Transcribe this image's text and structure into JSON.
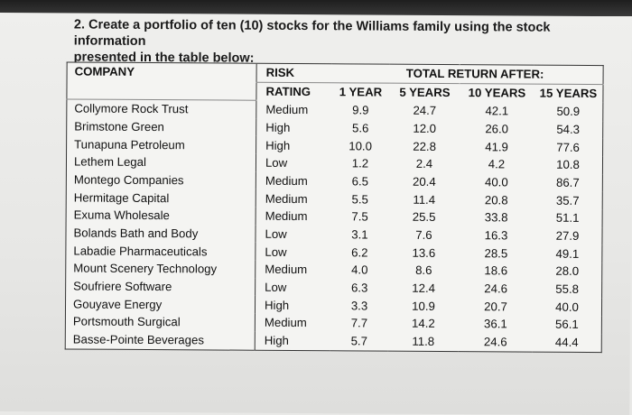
{
  "question": {
    "line1": "2. Create a portfolio of ten (10) stocks for the Williams family using the stock information",
    "line2": "presented in the table below:"
  },
  "table": {
    "headers": {
      "company": "COMPANY",
      "risk_line1": "RISK",
      "risk_line2": "RATING",
      "total_return": "TOTAL RETURN AFTER:",
      "y1": "1 YEAR",
      "y5": "5 YEARS",
      "y10": "10 YEARS",
      "y15": "15 YEARS"
    },
    "rows": [
      {
        "company": "Collymore Rock Trust",
        "risk": "Medium",
        "y1": "9.9",
        "y5": "24.7",
        "y10": "42.1",
        "y15": "50.9"
      },
      {
        "company": "Brimstone Green",
        "risk": "High",
        "y1": "5.6",
        "y5": "12.0",
        "y10": "26.0",
        "y15": "54.3"
      },
      {
        "company": "Tunapuna Petroleum",
        "risk": "High",
        "y1": "10.0",
        "y5": "22.8",
        "y10": "41.9",
        "y15": "77.6"
      },
      {
        "company": "Lethem Legal",
        "risk": "Low",
        "y1": "1.2",
        "y5": "2.4",
        "y10": "4.2",
        "y15": "10.8"
      },
      {
        "company": "Montego Companies",
        "risk": "Medium",
        "y1": "6.5",
        "y5": "20.4",
        "y10": "40.0",
        "y15": "86.7"
      },
      {
        "company": "Hermitage Capital",
        "risk": "Medium",
        "y1": "5.5",
        "y5": "11.4",
        "y10": "20.8",
        "y15": "35.7"
      },
      {
        "company": "Exuma Wholesale",
        "risk": "Medium",
        "y1": "7.5",
        "y5": "25.5",
        "y10": "33.8",
        "y15": "51.1"
      },
      {
        "company": "Bolands Bath and Body",
        "risk": "Low",
        "y1": "3.1",
        "y5": "7.6",
        "y10": "16.3",
        "y15": "27.9"
      },
      {
        "company": "Labadie Pharmaceuticals",
        "risk": "Low",
        "y1": "6.2",
        "y5": "13.6",
        "y10": "28.5",
        "y15": "49.1"
      },
      {
        "company": "Mount Scenery Technology",
        "risk": "Medium",
        "y1": "4.0",
        "y5": "8.6",
        "y10": "18.6",
        "y15": "28.0"
      },
      {
        "company": "Soufriere Software",
        "risk": "Low",
        "y1": "6.3",
        "y5": "12.4",
        "y10": "24.6",
        "y15": "55.8"
      },
      {
        "company": "Gouyave Energy",
        "risk": "High",
        "y1": "3.3",
        "y5": "10.9",
        "y10": "20.7",
        "y15": "40.0"
      },
      {
        "company": "Portsmouth Surgical",
        "risk": "Medium",
        "y1": "7.7",
        "y5": "14.2",
        "y10": "36.1",
        "y15": "56.1"
      },
      {
        "company": "Basse-Pointe Beverages",
        "risk": "High",
        "y1": "5.7",
        "y5": "11.8",
        "y10": "24.6",
        "y15": "44.4"
      }
    ]
  }
}
